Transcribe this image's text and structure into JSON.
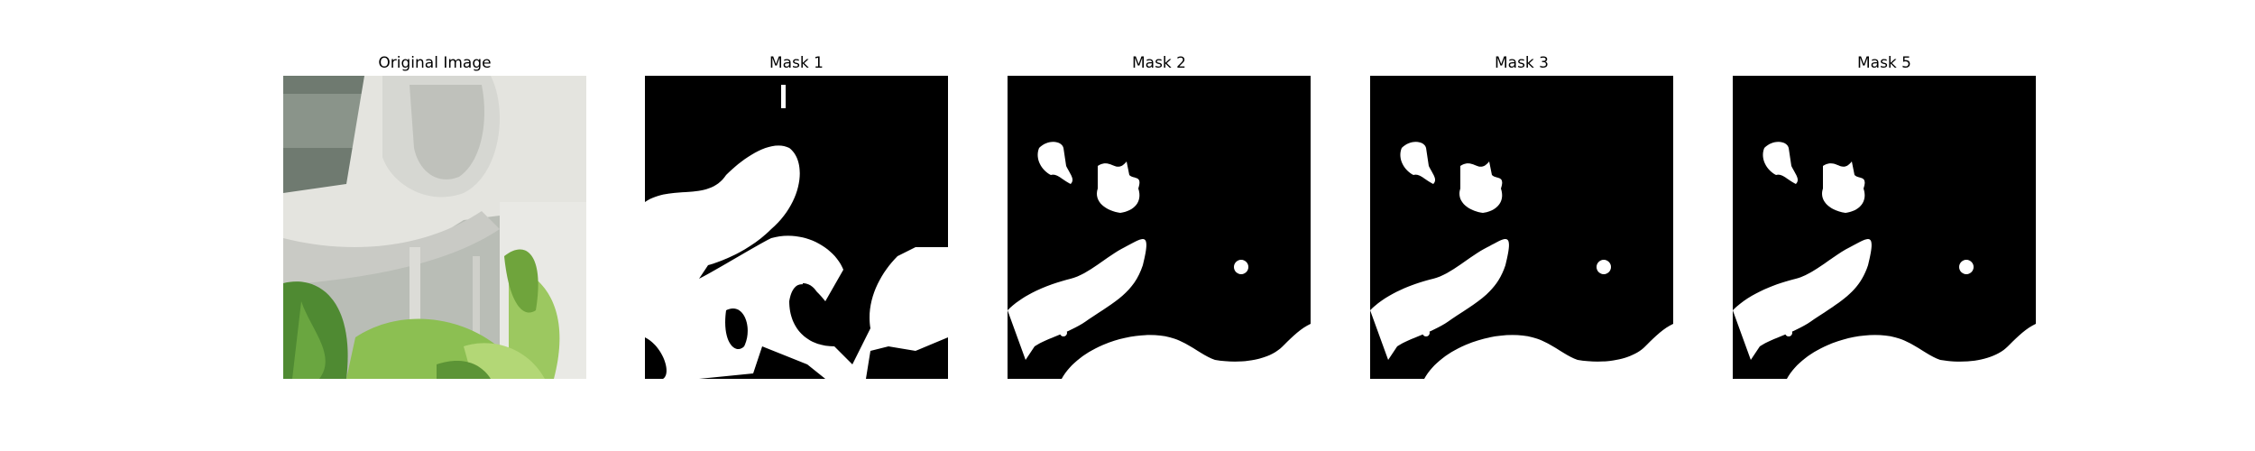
{
  "figure": {
    "panels": [
      {
        "title": "Original Image",
        "kind": "photo",
        "subject": "plant-leaves-and-white-pipe"
      },
      {
        "title": "Mask 1",
        "kind": "binary-mask"
      },
      {
        "title": "Mask 2",
        "kind": "binary-mask"
      },
      {
        "title": "Mask 3",
        "kind": "binary-mask"
      },
      {
        "title": "Mask 5",
        "kind": "binary-mask"
      }
    ]
  },
  "colors": {
    "background": "#ffffff",
    "mask_foreground": "#ffffff",
    "mask_background": "#000000",
    "leaf_green": "#7aa84a",
    "pipe_white": "#e6e6e2"
  }
}
